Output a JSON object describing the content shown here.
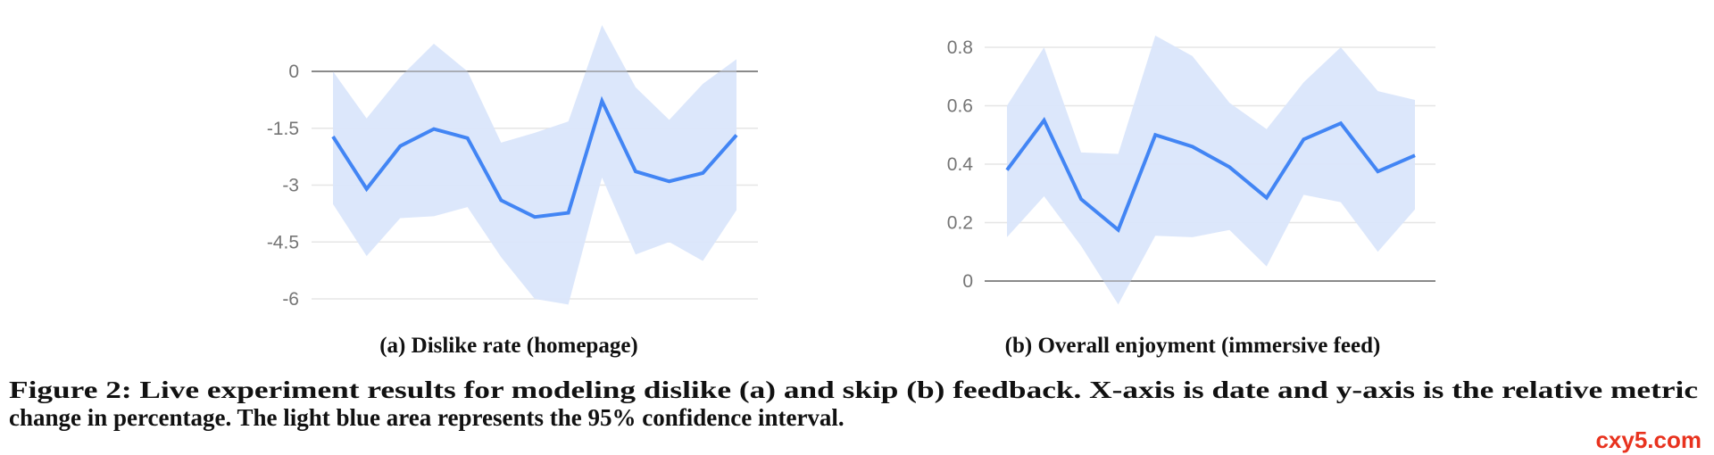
{
  "chart_data": [
    {
      "type": "line",
      "title": "(a) Dislike rate (homepage)",
      "xlabel": "date",
      "ylabel": "relative metric change (%)",
      "ylim": [
        -6,
        0
      ],
      "yticks": [
        0,
        -1.5,
        -3,
        -4.5,
        -6
      ],
      "ytick_labels": [
        "0",
        "-1.5",
        "-3",
        "-4.5",
        "-6"
      ],
      "grid": true,
      "x": [
        1,
        2,
        3,
        4,
        5,
        6,
        7,
        8,
        9,
        10,
        11,
        12,
        13
      ],
      "series": [
        {
          "name": "mean",
          "values": [
            -1.72,
            -3.1,
            -1.97,
            -1.52,
            -1.76,
            -3.4,
            -3.84,
            -3.73,
            -0.78,
            -2.64,
            -2.9,
            -2.68,
            -1.68
          ]
        },
        {
          "name": "ci_upper",
          "values": [
            0.0,
            -1.24,
            -0.15,
            0.73,
            0.0,
            -1.88,
            -1.62,
            -1.32,
            1.22,
            -0.42,
            -1.28,
            -0.33,
            0.32
          ]
        },
        {
          "name": "ci_lower",
          "values": [
            -3.5,
            -4.87,
            -3.87,
            -3.82,
            -3.58,
            -4.9,
            -6.0,
            -6.15,
            -2.8,
            -4.83,
            -4.5,
            -5.0,
            -3.66
          ]
        }
      ]
    },
    {
      "type": "line",
      "title": "(b) Overall enjoyment (immersive feed)",
      "xlabel": "date",
      "ylabel": "relative metric change (%)",
      "ylim": [
        0,
        0.8
      ],
      "yticks": [
        0.8,
        0.6,
        0.4,
        0.2,
        0
      ],
      "ytick_labels": [
        "0.8",
        "0.6",
        "0.4",
        "0.2",
        "0"
      ],
      "grid": true,
      "x": [
        1,
        2,
        3,
        4,
        5,
        6,
        7,
        8,
        9,
        10,
        11,
        12
      ],
      "series": [
        {
          "name": "mean",
          "values": [
            0.38,
            0.55,
            0.28,
            0.175,
            0.5,
            0.46,
            0.39,
            0.285,
            0.485,
            0.54,
            0.375,
            0.43
          ]
        },
        {
          "name": "ci_upper",
          "values": [
            0.6,
            0.8,
            0.44,
            0.435,
            0.84,
            0.77,
            0.61,
            0.52,
            0.68,
            0.8,
            0.65,
            0.62
          ]
        },
        {
          "name": "ci_lower",
          "values": [
            0.15,
            0.29,
            0.12,
            -0.08,
            0.155,
            0.15,
            0.175,
            0.05,
            0.295,
            0.27,
            0.1,
            0.245
          ]
        }
      ]
    }
  ],
  "caption": {
    "line1": "Figure 2: Live experiment results for modeling dislike (a) and skip (b) feedback. X-axis is date and y-axis is the relative metric",
    "line2": "change in percentage. The light blue area represents the 95% confidence interval."
  },
  "watermark": "cxy5.com",
  "colors": {
    "line": "#4285f4",
    "band": "#dae6fb",
    "grid": "#e6e6e6",
    "baseline": "#8a8a8a"
  }
}
